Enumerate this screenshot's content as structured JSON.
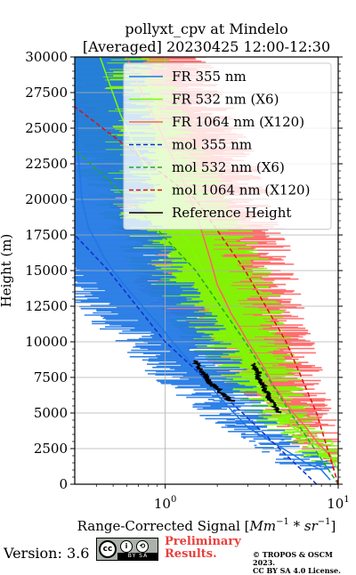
{
  "chart_data": {
    "type": "line",
    "title_line1": "pollyxt_cpv at Mindelo",
    "title_line2": "[Averaged] 20230425 12:00-12:30",
    "xlabel": "Range-Corrected Signal [Mm^{-1}*sr^{-1}]",
    "xlabel_prefix": "Range-Corrected Signal [",
    "xlabel_unit1": "Mm",
    "xlabel_exp1": "−1",
    "xlabel_mid": " * ",
    "xlabel_unit2": "sr",
    "xlabel_exp2": "−1",
    "xlabel_suffix": "]",
    "ylabel": "Height (m)",
    "xscale": "log",
    "xlim": [
      0.3,
      10
    ],
    "ylim": [
      0,
      30000
    ],
    "grid": true,
    "legend_position": "top-right",
    "x_tick_labels": [
      {
        "value": 1,
        "base": "10",
        "exp": "0"
      },
      {
        "value": 10,
        "base": "10",
        "exp": "1"
      }
    ],
    "y_ticks": [
      0,
      2500,
      5000,
      7500,
      10000,
      12500,
      15000,
      17500,
      20000,
      22500,
      25000,
      27500,
      30000
    ],
    "series": [
      {
        "name": "FR 355 nm",
        "style": "solid",
        "color": "#1f77e4",
        "y": [
          300,
          1000,
          1500,
          2000,
          2500,
          3000,
          3500,
          4000,
          5000,
          6000,
          7000,
          8000,
          9000,
          10000,
          11000,
          12000,
          13000,
          14000,
          15000,
          16000,
          17000,
          18000,
          20000,
          22000,
          24000,
          26000,
          28000,
          30000
        ],
        "x": [
          9.0,
          8.0,
          6.5,
          5.6,
          4.8,
          4.1,
          3.5,
          3.0,
          2.5,
          2.1,
          1.8,
          1.5,
          1.3,
          1.1,
          0.95,
          0.8,
          0.68,
          0.58,
          0.5,
          0.44,
          0.4,
          0.36,
          0.33,
          0.32,
          0.31,
          0.31,
          0.3,
          0.3
        ]
      },
      {
        "name": "FR 532 nm (X6)",
        "style": "solid",
        "color": "#7cfc00",
        "y": [
          1000,
          2000,
          3000,
          4000,
          5000,
          6000,
          7000,
          8000,
          9000,
          10000,
          11000,
          12000,
          13000,
          14000,
          15000,
          16000,
          17000,
          18000,
          19000,
          20000,
          22000,
          24000,
          26000,
          28000,
          30000
        ],
        "x": [
          10.0,
          9.0,
          7.0,
          5.5,
          4.6,
          4.0,
          3.5,
          3.2,
          2.9,
          2.6,
          2.4,
          2.2,
          2.0,
          1.8,
          1.65,
          1.5,
          1.35,
          1.2,
          1.05,
          0.95,
          0.8,
          0.65,
          0.55,
          0.48,
          0.42
        ]
      },
      {
        "name": "FR 1064 nm (X120)",
        "style": "solid",
        "color": "#ff6464",
        "y": [
          1000,
          2000,
          3000,
          4000,
          5000,
          6000,
          7000,
          8000,
          9000,
          10000,
          11000,
          12000,
          13000,
          14000,
          15000,
          16000,
          17000,
          18000,
          19000,
          20000,
          22000,
          24000,
          26000,
          28000,
          30000
        ],
        "x": [
          9.5,
          9.0,
          7.5,
          6.5,
          5.5,
          4.8,
          4.2,
          3.8,
          3.4,
          3.0,
          2.7,
          2.4,
          2.2,
          2.0,
          1.9,
          1.8,
          1.7,
          1.6,
          1.5,
          1.4,
          1.2,
          1.0,
          0.85,
          0.7,
          0.6
        ]
      },
      {
        "name": "mol 355 nm",
        "style": "dashed",
        "color": "#1030d0",
        "y": [
          0,
          5000,
          10000,
          15000,
          17500
        ],
        "x": [
          7.5,
          2.8,
          1.0,
          0.47,
          0.3
        ]
      },
      {
        "name": "mol 532 nm (X6)",
        "style": "dashed",
        "color": "#22aa22",
        "y": [
          0,
          5000,
          10000,
          15000,
          20000,
          23500
        ],
        "x": [
          10.0,
          5.3,
          2.9,
          1.5,
          0.62,
          0.3
        ]
      },
      {
        "name": "mol 1064 nm (X120)",
        "style": "dashed",
        "color": "#dd1010",
        "y": [
          0,
          5000,
          10000,
          15000,
          20000,
          26500
        ],
        "x": [
          10.0,
          7.5,
          5.0,
          2.9,
          1.5,
          0.3
        ]
      },
      {
        "name": "Reference Height",
        "style": "solid",
        "color": "#000000",
        "y": [
          5000,
          5500,
          6000,
          6500,
          7000,
          7500,
          8000,
          8500,
          8000,
          7500,
          7000,
          6500,
          6000,
          5500,
          5000
        ],
        "x": [
          3.8,
          3.6,
          3.3,
          3.1,
          2.8,
          2.6,
          2.2,
          1.7,
          1.4,
          1.55,
          1.75,
          2.0,
          2.2,
          2.5,
          2.8
        ],
        "segments": [
          {
            "y": [
              8700,
              8300,
              8000,
              7700,
              7400,
              7000,
              6700,
              6300,
              6000,
              5800
            ],
            "x": [
              1.45,
              1.55,
              1.6,
              1.7,
              1.75,
              1.85,
              2.0,
              2.15,
              2.3,
              2.5
            ]
          },
          {
            "y": [
              8500,
              8100,
              7800,
              7500,
              7200,
              6900,
              6600,
              6300,
              6000,
              5700,
              5400,
              5000
            ],
            "x": [
              3.2,
              3.3,
              3.5,
              3.4,
              3.55,
              3.7,
              3.75,
              3.9,
              4.0,
              4.15,
              4.3,
              4.6
            ]
          }
        ]
      }
    ],
    "legend_entries": [
      {
        "label": "FR 355 nm",
        "color": "#1f77e4",
        "style": "solid"
      },
      {
        "label": "FR 532 nm (X6)",
        "color": "#7cfc00",
        "style": "solid"
      },
      {
        "label": "FR 1064 nm (X120)",
        "color": "#ff6464",
        "style": "solid"
      },
      {
        "label": "mol 355 nm",
        "color": "#1030d0",
        "style": "dashed"
      },
      {
        "label": "mol 532 nm (X6)",
        "color": "#22aa22",
        "style": "dashed"
      },
      {
        "label": "mol 1064 nm (X120)",
        "color": "#dd1010",
        "style": "dashed"
      },
      {
        "label": "Reference Height",
        "color": "#000000",
        "style": "solid"
      }
    ]
  },
  "footer": {
    "version": "Version: 3.6",
    "badge_cc": "cc",
    "badge_by": "i",
    "badge_sa": "⟲",
    "badge_strip": "BY  SA",
    "preliminary_line1": "Preliminary",
    "preliminary_line2": "Results.",
    "copyright_line1": "© TROPOS & OSCM 2023.",
    "copyright_line2": "CC BY SA 4.0 License."
  }
}
